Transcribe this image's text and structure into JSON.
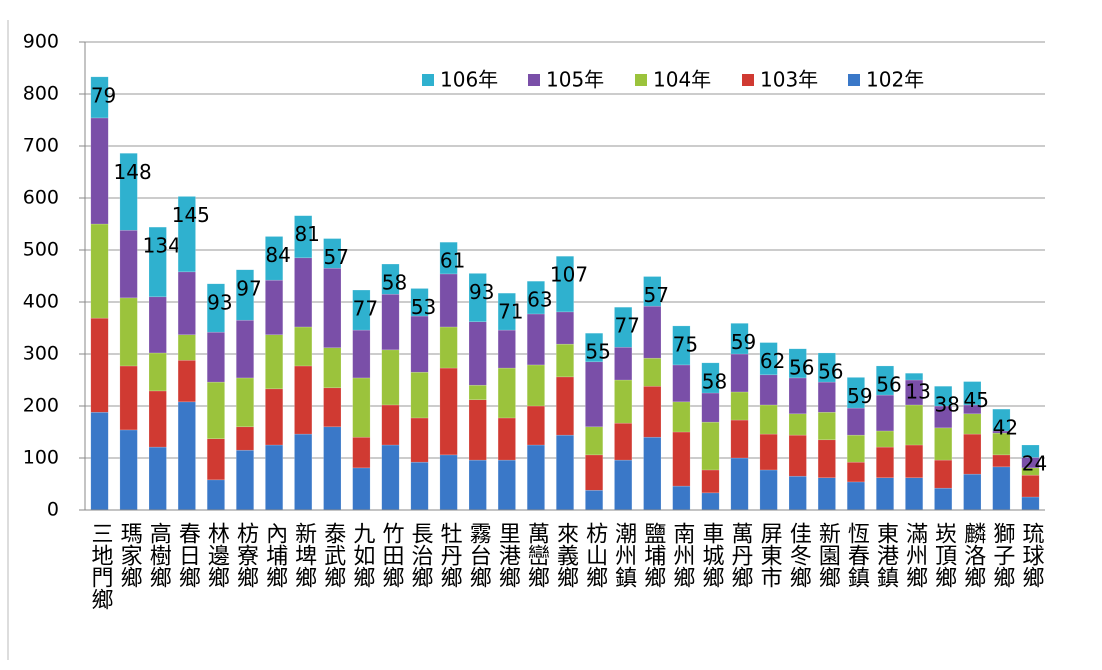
{
  "chart_data": {
    "type": "stacked_bar",
    "categories": [
      "三地門鄉",
      "瑪家鄉",
      "高樹鄉",
      "春日鄉",
      "林邊鄉",
      "枋寮鄉",
      "內埔鄉",
      "新埤鄉",
      "泰武鄉",
      "九如鄉",
      "竹田鄉",
      "長治鄉",
      "牡丹鄉",
      "霧台鄉",
      "里港鄉",
      "萬巒鄉",
      "來義鄉",
      "枋山鄉",
      "潮州鎮",
      "鹽埔鄉",
      "南州鄉",
      "車城鄉",
      "萬丹鄉",
      "屏東市",
      "佳冬鄉",
      "新園鄉",
      "恆春鎮",
      "東港鎮",
      "滿州鄉",
      "崁頂鄉",
      "麟洛鄉",
      "獅子鄉",
      "琉球鄉"
    ],
    "series": [
      {
        "name": "102年",
        "color": "#3a78c8",
        "values": [
          188,
          154,
          121,
          208,
          58,
          115,
          125,
          146,
          160,
          81,
          125,
          92,
          106,
          96,
          96,
          125,
          144,
          38,
          96,
          140,
          46,
          33,
          100,
          77,
          65,
          62,
          54,
          62,
          62,
          42,
          69,
          83,
          25
        ]
      },
      {
        "name": "103年",
        "color": "#d03a32",
        "values": [
          181,
          123,
          108,
          80,
          79,
          45,
          108,
          131,
          75,
          59,
          77,
          85,
          167,
          116,
          81,
          75,
          112,
          68,
          71,
          98,
          104,
          44,
          73,
          69,
          79,
          73,
          38,
          59,
          63,
          54,
          77,
          23,
          42
        ]
      },
      {
        "name": "104年",
        "color": "#9bc33c",
        "values": [
          181,
          131,
          73,
          49,
          109,
          94,
          104,
          75,
          77,
          114,
          106,
          88,
          79,
          28,
          96,
          79,
          63,
          54,
          83,
          54,
          58,
          92,
          54,
          56,
          41,
          53,
          52,
          31,
          77,
          62,
          39,
          42,
          14
        ]
      },
      {
        "name": "105年",
        "color": "#7a4fa8",
        "values": [
          204,
          130,
          108,
          121,
          96,
          111,
          105,
          133,
          153,
          92,
          107,
          108,
          102,
          122,
          73,
          98,
          62,
          125,
          63,
          100,
          71,
          56,
          73,
          58,
          69,
          58,
          52,
          69,
          48,
          42,
          17,
          4,
          20
        ]
      },
      {
        "name": "106年",
        "color": "#2fb1cf",
        "values": [
          79,
          148,
          134,
          145,
          93,
          97,
          84,
          81,
          57,
          77,
          58,
          53,
          61,
          93,
          71,
          63,
          107,
          55,
          77,
          57,
          75,
          58,
          59,
          62,
          56,
          56,
          59,
          56,
          13,
          38,
          45,
          42,
          24
        ],
        "labeled": true
      }
    ],
    "ylim": [
      0,
      900
    ],
    "yticks": [
      0,
      100,
      200,
      300,
      400,
      500,
      600,
      700,
      800,
      900
    ],
    "grid": true
  }
}
